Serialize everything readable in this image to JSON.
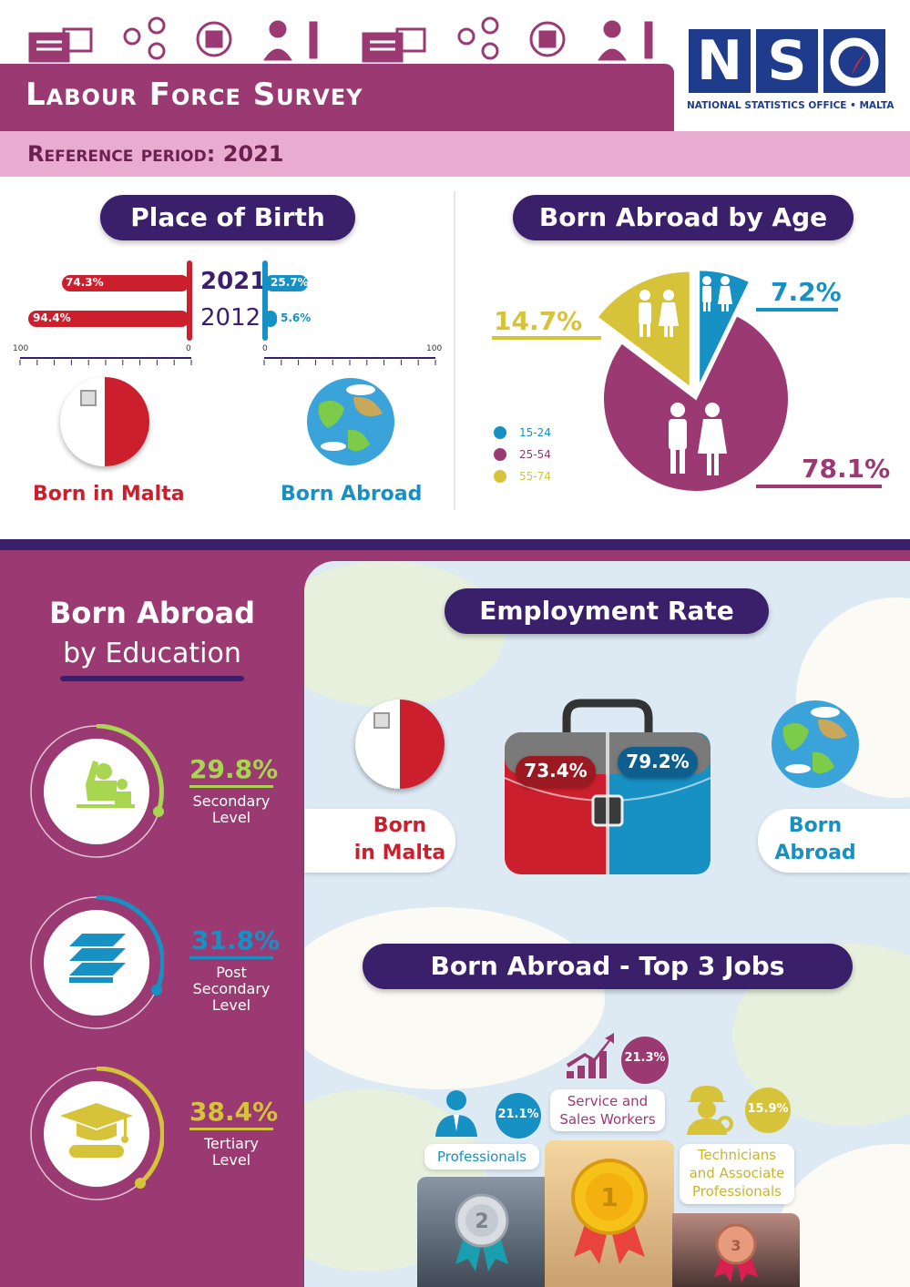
{
  "header": {
    "title": "Labour Force Survey",
    "reference_period": "Reference period: 2021",
    "logo_letters": "NSO",
    "logo_caption": "NATIONAL STATISTICS OFFICE • MALTA"
  },
  "place_of_birth": {
    "title": "Place of Birth",
    "years": [
      "2021",
      "2012"
    ],
    "malta_values": [
      "74.3%",
      "94.4%"
    ],
    "abroad_values": [
      "25.7%",
      "5.6%"
    ],
    "axis_left": [
      "100",
      "0"
    ],
    "axis_right": [
      "0",
      "100"
    ],
    "born_malta_label": "Born in Malta",
    "born_abroad_label": "Born Abroad"
  },
  "born_abroad_by_age": {
    "title": "Born Abroad by Age",
    "labels": [
      "7.2%",
      "14.7%",
      "78.1%"
    ],
    "legend": [
      "15-24",
      "25-54",
      "55-74"
    ]
  },
  "education": {
    "title_line1": "Born Abroad",
    "title_line2": "by Education",
    "items": [
      {
        "value": "29.8%",
        "line1": "Secondary",
        "line2": "Level",
        "line3": ""
      },
      {
        "value": "31.8%",
        "line1": "Post",
        "line2": "Secondary",
        "line3": "Level"
      },
      {
        "value": "38.4%",
        "line1": "Tertiary",
        "line2": "Level",
        "line3": ""
      }
    ]
  },
  "employment": {
    "title": "Employment Rate",
    "malta_value": "73.4%",
    "abroad_value": "79.2%",
    "malta_line1": "Born",
    "malta_line2": "in Malta",
    "abroad_line1": "Born",
    "abroad_line2": "Abroad"
  },
  "top_jobs": {
    "title": "Born Abroad - Top 3 Jobs",
    "first": {
      "value": "21.3%",
      "line1": "Service and",
      "line2": "Sales Workers",
      "rank": "1"
    },
    "second": {
      "value": "21.1%",
      "line1": "Professionals",
      "rank": "2"
    },
    "third": {
      "value": "15.9%",
      "line1": "Technicians",
      "line2": "and Associate",
      "line3": "Professionals",
      "rank": "3"
    }
  },
  "chart_data": [
    {
      "type": "bar",
      "title": "Place of Birth",
      "categories": [
        "2021",
        "2012"
      ],
      "series": [
        {
          "name": "Born in Malta",
          "values": [
            74.3,
            94.4
          ]
        },
        {
          "name": "Born Abroad",
          "values": [
            25.7,
            5.6
          ]
        }
      ],
      "xlim": [
        0,
        100
      ]
    },
    {
      "type": "pie",
      "title": "Born Abroad by Age",
      "categories": [
        "15-24",
        "25-54",
        "55-74"
      ],
      "values": [
        7.2,
        78.1,
        14.7
      ]
    }
  ],
  "colors": {
    "purple": "#9b3a72",
    "navy": "#3a1f6b",
    "red": "#cc1f2d",
    "blue": "#1790c4",
    "yellow": "#d6c33a",
    "green": "#a8d650"
  }
}
